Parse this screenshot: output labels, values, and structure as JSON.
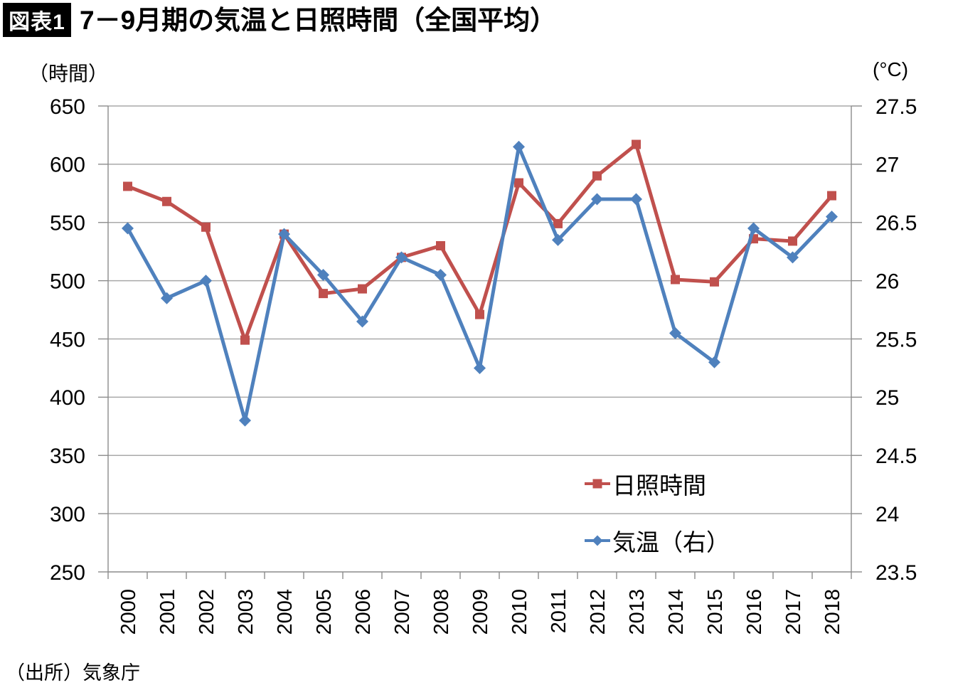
{
  "header": {
    "badge": "図表1",
    "title": "7－9月期の気温と日照時間（全国平均）"
  },
  "source": "（出所）気象庁",
  "colors": {
    "sunshine_series": "#C0504D",
    "temperature_series": "#4F81BD",
    "gridline": "#A9A9A9",
    "axis": "#8C8C8C",
    "text": "#000000",
    "badge_bg": "#000000",
    "badge_text": "#ffffff"
  },
  "chart_data": {
    "type": "line",
    "title": "7－9月期の気温と日照時間（全国平均）",
    "grid": true,
    "legend_position": "inside-right-bottom",
    "left_axis": {
      "unit": "（時間）",
      "min": 250,
      "max": 650,
      "step": 50,
      "ticks": [
        "650",
        "600",
        "550",
        "500",
        "450",
        "400",
        "350",
        "300",
        "250"
      ]
    },
    "right_axis": {
      "unit": "(°C)",
      "min": 23.5,
      "max": 27.5,
      "step": 0.5,
      "ticks": [
        "27.5",
        "27",
        "26.5",
        "26",
        "25.5",
        "25",
        "24.5",
        "24",
        "23.5"
      ]
    },
    "categories": [
      "2000",
      "2001",
      "2002",
      "2003",
      "2004",
      "2005",
      "2006",
      "2007",
      "2008",
      "2009",
      "2010",
      "2011",
      "2012",
      "2013",
      "2014",
      "2015",
      "2016",
      "2017",
      "2018"
    ],
    "series": [
      {
        "name": "日照時間",
        "axis": "left",
        "color": "#C0504D",
        "marker": "square",
        "values": [
          581,
          568,
          546,
          449,
          540,
          489,
          493,
          520,
          530,
          471,
          584,
          549,
          590,
          617,
          501,
          499,
          536,
          534,
          573
        ]
      },
      {
        "name": "気温（右）",
        "axis": "right",
        "color": "#4F81BD",
        "marker": "diamond",
        "values": [
          26.45,
          25.85,
          26.0,
          24.8,
          26.4,
          26.05,
          25.65,
          26.2,
          26.05,
          25.25,
          27.15,
          26.35,
          26.7,
          26.7,
          25.55,
          25.3,
          26.45,
          26.2,
          26.55
        ]
      }
    ]
  }
}
